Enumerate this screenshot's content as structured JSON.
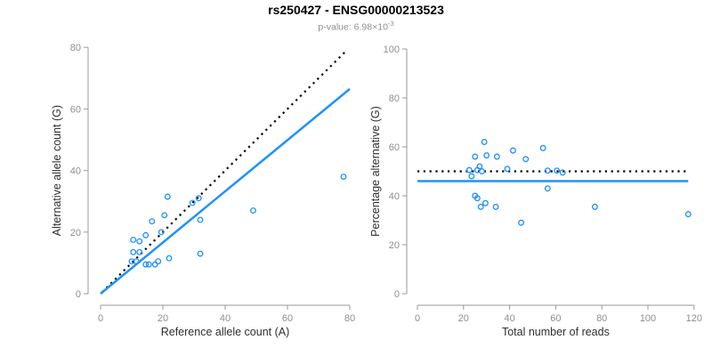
{
  "header": {
    "title": "rs250427 - ENSG00000213523",
    "subtitle_prefix": "p-value: 6.98×10",
    "subtitle_exponent": "-3"
  },
  "colors": {
    "point_blue": "#1E90FF",
    "fit_line_blue": "#1E90FF",
    "dotted_black": "#000000",
    "axis_gray": "#999999",
    "tick_label_gray": "#8e8e8e",
    "axis_title_dark": "#2f2f2f"
  },
  "chart_data": [
    {
      "type": "scatter",
      "xlabel": "Reference allele count (A)",
      "ylabel": "Alternative allele count (G)",
      "xlim": [
        0,
        80
      ],
      "ylim": [
        0,
        80
      ],
      "xticks": [
        0,
        20,
        40,
        60,
        80
      ],
      "yticks": [
        0,
        20,
        40,
        60,
        80
      ],
      "grid": false,
      "points": [
        [
          10.5,
          17.5
        ],
        [
          12.5,
          17
        ],
        [
          14.5,
          19
        ],
        [
          16.5,
          23.5
        ],
        [
          19.5,
          20
        ],
        [
          20.5,
          25.5
        ],
        [
          21.5,
          31.5
        ],
        [
          29.5,
          29.5
        ],
        [
          31.5,
          31
        ],
        [
          32,
          24
        ],
        [
          10.5,
          13.5
        ],
        [
          12.5,
          13.5
        ],
        [
          10,
          10.5
        ],
        [
          11.5,
          10.5
        ],
        [
          14.5,
          9.5
        ],
        [
          15.5,
          9.5
        ],
        [
          17.5,
          9.5
        ],
        [
          18.5,
          10.5
        ],
        [
          22,
          11.5
        ],
        [
          32,
          13
        ],
        [
          49,
          27
        ],
        [
          78,
          38
        ]
      ],
      "lines": [
        {
          "name": "identity-line",
          "style": "dotted",
          "color": "#000000",
          "x1": 0.5,
          "y1": 0.5,
          "x2": 79,
          "y2": 79
        },
        {
          "name": "fit-line",
          "style": "solid",
          "color": "#1E90FF",
          "x1": 0,
          "y1": 0,
          "x2": 80,
          "y2": 66.5
        }
      ]
    },
    {
      "type": "scatter",
      "xlabel": "Total number of reads",
      "ylabel": "Percentage alternative (G)",
      "xlim": [
        0,
        120
      ],
      "ylim": [
        0,
        100
      ],
      "xticks": [
        0,
        20,
        40,
        60,
        80,
        100,
        120
      ],
      "yticks": [
        0,
        20,
        40,
        60,
        80,
        100
      ],
      "grid": false,
      "points": [
        [
          29,
          62
        ],
        [
          25,
          56
        ],
        [
          30,
          56.5
        ],
        [
          34.5,
          56
        ],
        [
          41.5,
          58.5
        ],
        [
          47,
          55
        ],
        [
          54.5,
          59.5
        ],
        [
          27,
          52
        ],
        [
          26,
          50.5
        ],
        [
          28,
          50
        ],
        [
          22.5,
          50.5
        ],
        [
          23.5,
          48
        ],
        [
          39,
          51
        ],
        [
          56.5,
          50.3
        ],
        [
          60.5,
          50.3
        ],
        [
          63,
          49.5
        ],
        [
          56.5,
          43
        ],
        [
          25,
          40
        ],
        [
          26,
          39
        ],
        [
          27.5,
          35.5
        ],
        [
          29.5,
          37
        ],
        [
          34,
          35.5
        ],
        [
          45,
          29
        ],
        [
          77,
          35.5
        ],
        [
          117.5,
          32.5
        ]
      ],
      "lines": [
        {
          "name": "expected-50pct-line",
          "style": "dotted",
          "color": "#000000",
          "x1": 0,
          "y1": 50,
          "x2": 117.5,
          "y2": 50
        },
        {
          "name": "observed-mean-line",
          "style": "solid",
          "color": "#1E90FF",
          "x1": 0,
          "y1": 46,
          "x2": 117.5,
          "y2": 46
        }
      ]
    }
  ]
}
